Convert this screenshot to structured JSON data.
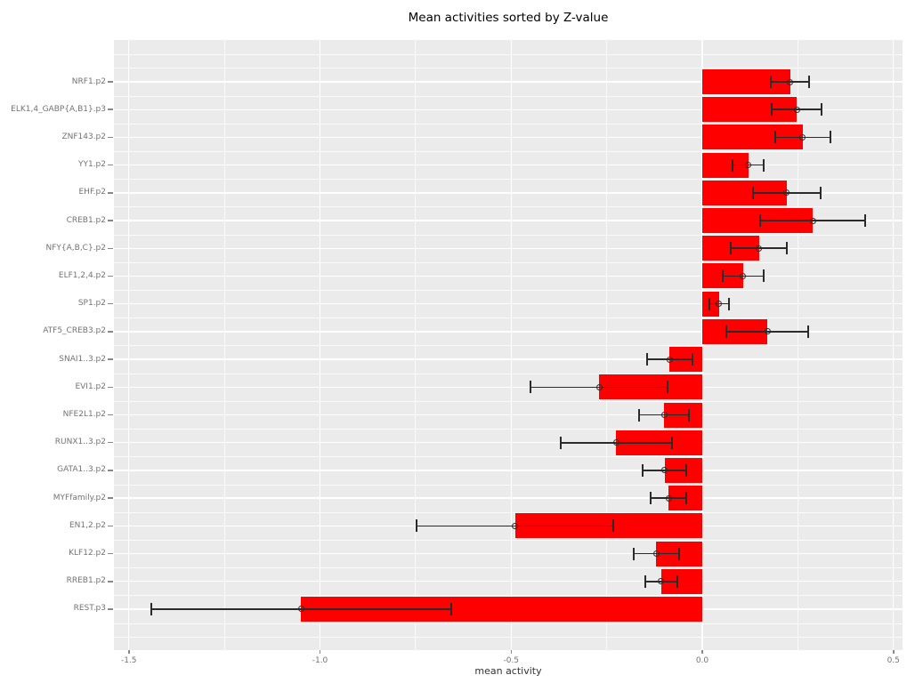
{
  "page": {
    "title": "Mean activities sorted by Z-value"
  },
  "chart_data": {
    "type": "bar",
    "orientation": "horizontal",
    "title": "Mean activities sorted by Z-value",
    "xlabel": "mean activity",
    "ylabel": "",
    "xlim": [
      -1.54,
      0.52
    ],
    "xticks": [
      -1.5,
      -1.0,
      -0.5,
      0.0,
      0.5
    ],
    "xtick_labels": [
      "-1.5",
      "-1.0",
      "-0.5",
      "0.0",
      "0.5"
    ],
    "xminor_ticks": [
      -1.25,
      -0.75,
      -0.25,
      0.25
    ],
    "grid": "white major/minor gridlines on grey panel",
    "legend": false,
    "error_bars": true,
    "point_marker": "open-circle",
    "categories": [
      "NRF1.p2",
      "ELK1,4_GABP{A,B1}.p3",
      "ZNF143.p2",
      "YY1.p2",
      "EHF.p2",
      "CREB1.p2",
      "NFY{A,B,C}.p2",
      "ELF1,2,4.p2",
      "SP1.p2",
      "ATF5_CREB3.p2",
      "SNAI1..3.p2",
      "EVI1.p2",
      "NFE2L1.p2",
      "RUNX1..3.p2",
      "GATA1..3.p2",
      "MYFfamily.p2",
      "EN1,2.p2",
      "KLF12.p2",
      "RREB1.p2",
      "REST.p3"
    ],
    "values": [
      0.23,
      0.247,
      0.263,
      0.12,
      0.221,
      0.289,
      0.148,
      0.107,
      0.044,
      0.171,
      -0.085,
      -0.27,
      -0.1,
      -0.225,
      -0.098,
      -0.088,
      -0.49,
      -0.12,
      -0.108,
      -1.049
    ],
    "errors": [
      0.05,
      0.065,
      0.072,
      0.041,
      0.088,
      0.138,
      0.074,
      0.054,
      0.025,
      0.107,
      0.06,
      0.18,
      0.065,
      0.145,
      0.057,
      0.047,
      0.257,
      0.06,
      0.042,
      0.392
    ],
    "colors": {
      "bar_fill": "#FF0000",
      "panel_background": "#EBEBEB",
      "gridline": "#FFFFFF",
      "error_bar": "#2B2B2B",
      "axis_text": "#737373",
      "tick_mark": "#888888",
      "title": "#000000",
      "axis_label": "#333333",
      "figure_background": "#FFFFFF"
    }
  }
}
